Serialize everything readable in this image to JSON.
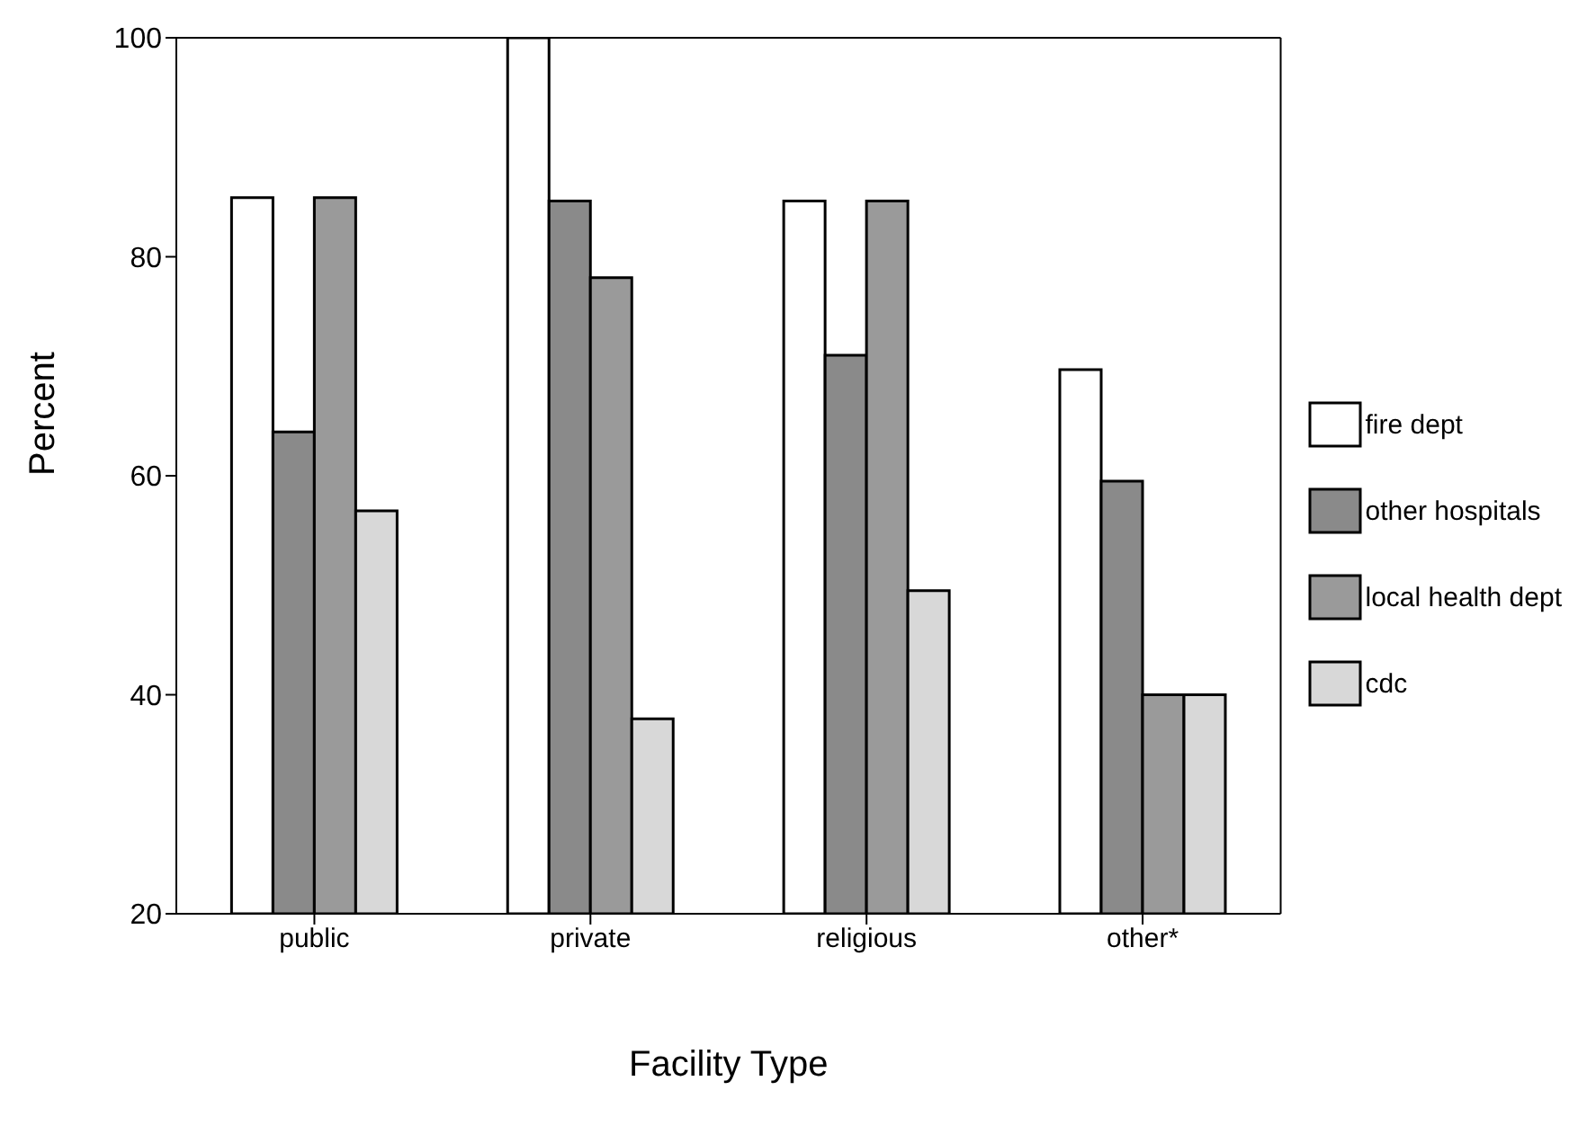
{
  "chart_data": {
    "type": "bar",
    "xlabel": "Facility Type",
    "ylabel": "Percent",
    "categories": [
      "public",
      "private",
      "religious",
      "other*"
    ],
    "series": [
      {
        "name": "fire dept",
        "color": "#ffffff",
        "values": [
          85.4,
          100,
          85.1,
          69.7
        ]
      },
      {
        "name": "other hospitals",
        "color": "#8a8a8a",
        "values": [
          64,
          85.1,
          71,
          59.5
        ]
      },
      {
        "name": "local health dept",
        "color": "#9a9a9a",
        "values": [
          85.4,
          78.1,
          85.1,
          40
        ]
      },
      {
        "name": "cdc",
        "color": "#d8d8d8",
        "values": [
          56.8,
          37.8,
          49.5,
          40
        ]
      }
    ],
    "ylim": [
      20,
      100
    ],
    "yticks": [
      20,
      40,
      60,
      80,
      100
    ],
    "legend": "right"
  }
}
